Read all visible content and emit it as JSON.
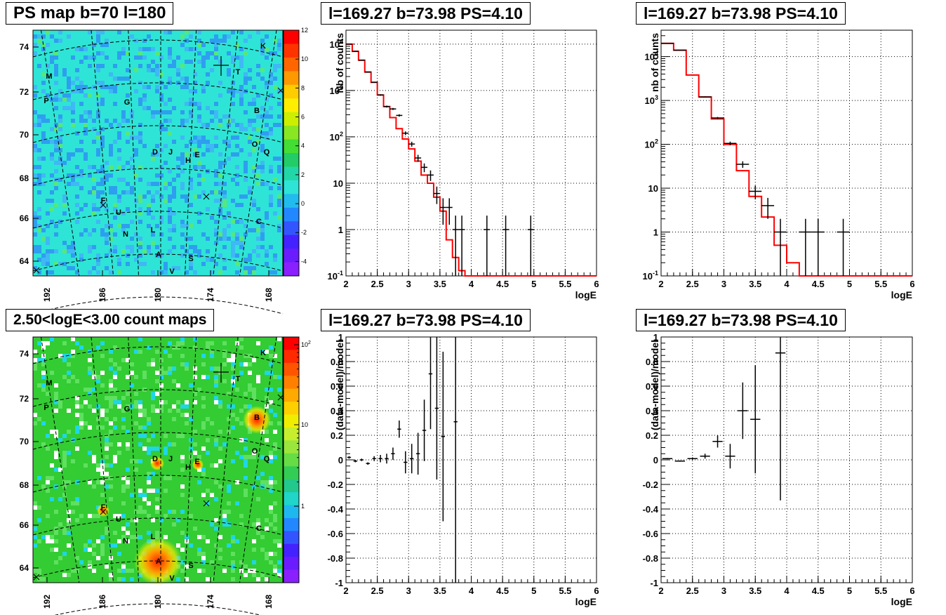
{
  "titles": {
    "map1": "PS map b=70 l=180",
    "map2": "2.50<logE<3.00 count maps",
    "c1": "l=169.27 b=73.98 PS=4.10",
    "c2": "l=169.27 b=73.98 PS=4.10",
    "c3": "l=169.27 b=73.98 PS=4.10",
    "c4": "l=169.27 b=73.98 PS=4.10"
  },
  "colors": {
    "model_line": "#ff0000",
    "data_marker": "#000000",
    "grid": "#000000",
    "map1_background": "#2ee4d6",
    "map2_background": "#33cc33",
    "hotspot": "#ff2200"
  },
  "chart_data": [
    {
      "type": "heatmap",
      "id": "map1",
      "title": "PS map b=70 l=180",
      "x_ticks": [
        "192",
        "186",
        "180",
        "174",
        "168"
      ],
      "y_ticks": [
        "74",
        "72",
        "70",
        "68",
        "66",
        "64"
      ],
      "colorbar": {
        "ticks": [
          "12",
          "10",
          "8",
          "6",
          "4",
          "2",
          "0",
          "-2",
          "-4"
        ],
        "range": [
          -5,
          12
        ]
      },
      "sources": [
        "K",
        "T",
        "M",
        "P",
        "G",
        "B",
        "O",
        "Q",
        "D",
        "J",
        "E",
        "H",
        "F",
        "U",
        "C",
        "N",
        "L",
        "A",
        "S",
        "V"
      ]
    },
    {
      "type": "heatmap",
      "id": "map2",
      "title": "2.50<logE<3.00 count maps",
      "x_ticks": [
        "192",
        "186",
        "180",
        "174",
        "168"
      ],
      "y_ticks": [
        "74",
        "72",
        "70",
        "68",
        "66",
        "64"
      ],
      "colorbar": {
        "ticks": [
          "10^2",
          "10",
          "1"
        ],
        "log": true
      },
      "sources": [
        "K",
        "T",
        "M",
        "P",
        "G",
        "B",
        "O",
        "Q",
        "D",
        "J",
        "E",
        "H",
        "F",
        "U",
        "C",
        "N",
        "L",
        "A",
        "S",
        "V"
      ]
    },
    {
      "type": "line",
      "id": "c1",
      "title": "l=169.27 b=73.98 PS=4.10",
      "xlabel": "logE",
      "ylabel": "Nb of counts",
      "xlim": [
        2,
        6
      ],
      "ylim": [
        0.1,
        20000
      ],
      "log_y": true,
      "grid": true,
      "x_ticks": [
        "2",
        "2.5",
        "3",
        "3.5",
        "4",
        "4.5",
        "5",
        "5.5",
        "6"
      ],
      "y_ticks": [
        "10^4",
        "10^3",
        "10^2",
        "10",
        "1",
        "10^-1"
      ],
      "model_x_edges": [
        2.0,
        2.1,
        2.2,
        2.3,
        2.4,
        2.5,
        2.6,
        2.7,
        2.8,
        2.9,
        3.0,
        3.1,
        3.2,
        3.3,
        3.4,
        3.5,
        3.6,
        3.7,
        3.8,
        3.9,
        4.0,
        6.0
      ],
      "model_values": [
        10000,
        7000,
        4500,
        2500,
        1500,
        800,
        450,
        260,
        150,
        90,
        55,
        30,
        15,
        10,
        5,
        2.5,
        0.6,
        0.25,
        0.13,
        0.1,
        0.1
      ],
      "data_points": [
        {
          "x": 2.05,
          "y": 10000
        },
        {
          "x": 2.15,
          "y": 7000
        },
        {
          "x": 2.25,
          "y": 4500
        },
        {
          "x": 2.35,
          "y": 2500
        },
        {
          "x": 2.45,
          "y": 1500
        },
        {
          "x": 2.55,
          "y": 800
        },
        {
          "x": 2.65,
          "y": 450
        },
        {
          "x": 2.75,
          "y": 400
        },
        {
          "x": 2.85,
          "y": 290
        },
        {
          "x": 2.95,
          "y": 120
        },
        {
          "x": 3.05,
          "y": 70
        },
        {
          "x": 3.15,
          "y": 35
        },
        {
          "x": 3.25,
          "y": 22
        },
        {
          "x": 3.35,
          "y": 15
        },
        {
          "x": 3.45,
          "y": 6
        },
        {
          "x": 3.55,
          "y": 3
        },
        {
          "x": 3.65,
          "y": 3
        },
        {
          "x": 3.75,
          "y": 1
        },
        {
          "x": 3.85,
          "y": 1
        },
        {
          "x": 4.25,
          "y": 1
        },
        {
          "x": 4.55,
          "y": 1
        },
        {
          "x": 4.95,
          "y": 1
        }
      ]
    },
    {
      "type": "line",
      "id": "c2",
      "title": "l=169.27 b=73.98 PS=4.10",
      "xlabel": "logE",
      "ylabel": "nb of counts",
      "xlim": [
        2,
        6
      ],
      "ylim": [
        0.1,
        40000
      ],
      "log_y": true,
      "grid": true,
      "x_ticks": [
        "2",
        "2.5",
        "3",
        "3.5",
        "4",
        "4.5",
        "5",
        "5.5",
        "6"
      ],
      "y_ticks": [
        "10^4",
        "10^3",
        "10^2",
        "10",
        "1",
        "10^-1"
      ],
      "model_x_edges": [
        2.0,
        2.2,
        2.4,
        2.6,
        2.8,
        3.0,
        3.2,
        3.4,
        3.6,
        3.8,
        4.0,
        4.2,
        4.4,
        6.0
      ],
      "model_values": [
        20000,
        14000,
        3800,
        1200,
        380,
        100,
        25,
        6.5,
        2.2,
        0.5,
        0.2,
        0.1,
        0.1
      ],
      "data_points": [
        {
          "x": 2.1,
          "y": 20000
        },
        {
          "x": 2.3,
          "y": 14000
        },
        {
          "x": 2.7,
          "y": 1200
        },
        {
          "x": 2.9,
          "y": 400
        },
        {
          "x": 3.1,
          "y": 105
        },
        {
          "x": 3.3,
          "y": 35
        },
        {
          "x": 3.5,
          "y": 8.5
        },
        {
          "x": 3.7,
          "y": 4
        },
        {
          "x": 3.9,
          "y": 1
        },
        {
          "x": 4.3,
          "y": 1
        },
        {
          "x": 4.5,
          "y": 1
        },
        {
          "x": 4.9,
          "y": 1
        }
      ]
    },
    {
      "type": "scatter",
      "id": "c3",
      "title": "l=169.27 b=73.98 PS=4.10",
      "xlabel": "logE",
      "ylabel": "(data-model)/model",
      "xlim": [
        2,
        6
      ],
      "ylim": [
        -1,
        1
      ],
      "grid": true,
      "x_ticks": [
        "2",
        "2.5",
        "3",
        "3.5",
        "4",
        "4.5",
        "5",
        "5.5",
        "6"
      ],
      "y_ticks": [
        "1",
        "0.8",
        "0.6",
        "0.4",
        "0.2",
        "0",
        "-0.2",
        "-0.4",
        "-0.6",
        "-0.8",
        "-1"
      ],
      "points": [
        {
          "x": 2.05,
          "y": 0.02,
          "err": 0.01
        },
        {
          "x": 2.15,
          "y": -0.01,
          "err": 0.01
        },
        {
          "x": 2.25,
          "y": 0.0,
          "err": 0.01
        },
        {
          "x": 2.35,
          "y": -0.03,
          "err": 0.01
        },
        {
          "x": 2.45,
          "y": 0.01,
          "err": 0.02
        },
        {
          "x": 2.55,
          "y": 0.01,
          "err": 0.03
        },
        {
          "x": 2.65,
          "y": 0.01,
          "err": 0.04
        },
        {
          "x": 2.75,
          "y": 0.05,
          "err": 0.05
        },
        {
          "x": 2.85,
          "y": 0.25,
          "err": 0.07
        },
        {
          "x": 2.95,
          "y": -0.02,
          "err": 0.09
        },
        {
          "x": 3.05,
          "y": 0.01,
          "err": 0.12
        },
        {
          "x": 3.15,
          "y": 0.05,
          "err": 0.17
        },
        {
          "x": 3.25,
          "y": 0.24,
          "err": 0.25
        },
        {
          "x": 3.35,
          "y": 0.7,
          "err": 0.45
        },
        {
          "x": 3.45,
          "y": 0.42,
          "err": 0.58
        },
        {
          "x": 3.55,
          "y": 0.19,
          "err": 0.69
        },
        {
          "x": 3.75,
          "y": 0.31,
          "err": 1.4
        }
      ]
    },
    {
      "type": "scatter",
      "id": "c4",
      "title": "l=169.27 b=73.98 PS=4.10",
      "xlabel": "logE",
      "ylabel": "(data-model)/model",
      "xlim": [
        2,
        6
      ],
      "ylim": [
        -1,
        1
      ],
      "grid": true,
      "x_ticks": [
        "2",
        "2.5",
        "3",
        "3.5",
        "4",
        "4.5",
        "5",
        "5.5",
        "6"
      ],
      "y_ticks": [
        "1",
        "0.8",
        "0.6",
        "0.4",
        "0.2",
        "0",
        "-0.2",
        "-0.4",
        "-0.6",
        "-0.8",
        "-1"
      ],
      "points": [
        {
          "x": 2.1,
          "y": 0.01,
          "err": 0.005
        },
        {
          "x": 2.3,
          "y": -0.01,
          "err": 0.005
        },
        {
          "x": 2.5,
          "y": 0.01,
          "err": 0.01
        },
        {
          "x": 2.7,
          "y": 0.03,
          "err": 0.02
        },
        {
          "x": 2.9,
          "y": 0.15,
          "err": 0.05
        },
        {
          "x": 3.1,
          "y": 0.03,
          "err": 0.1
        },
        {
          "x": 3.3,
          "y": 0.4,
          "err": 0.23
        },
        {
          "x": 3.5,
          "y": 0.33,
          "err": 0.44
        },
        {
          "x": 3.9,
          "y": 0.87,
          "err": 1.2
        }
      ]
    }
  ]
}
